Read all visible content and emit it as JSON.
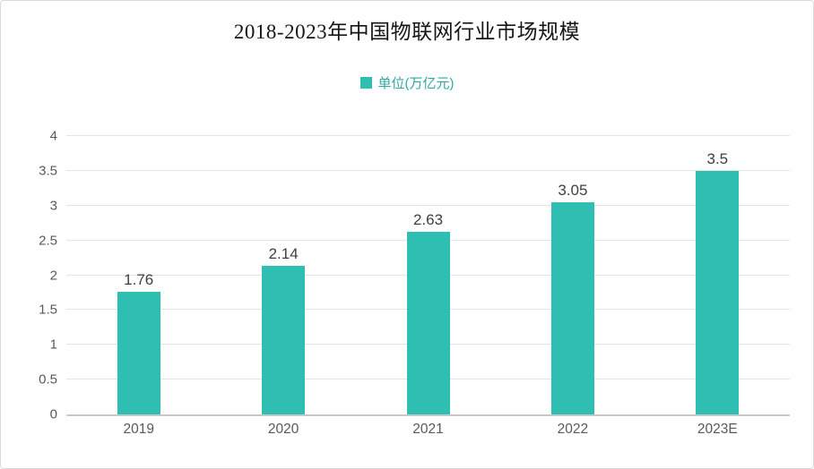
{
  "chart": {
    "title": "2018-2023年中国物联网行业市场规模",
    "legend_label": "单位(万亿元)"
  },
  "chart_data": {
    "type": "bar",
    "title": "2018-2023年中国物联网行业市场规模",
    "legend": [
      "单位(万亿元)"
    ],
    "legend_position": "top",
    "categories": [
      "2019",
      "2020",
      "2021",
      "2022",
      "2023E"
    ],
    "values": [
      1.76,
      2.14,
      2.63,
      3.05,
      3.5
    ],
    "value_labels": [
      "1.76",
      "2.14",
      "2.63",
      "3.05",
      "3.5"
    ],
    "xlabel": "",
    "ylabel": "",
    "ylim": [
      0,
      4
    ],
    "yticks": [
      0,
      0.5,
      1,
      1.5,
      2,
      2.5,
      3,
      3.5,
      4
    ],
    "ytick_labels": [
      "0",
      "0.5",
      "1",
      "1.5",
      "2",
      "2.5",
      "3",
      "3.5",
      "4"
    ],
    "grid": true
  },
  "colors": {
    "bar": "#2FBFB2",
    "legend_text": "#2FA99F",
    "grid_line": "#E4E4E4",
    "axis_line": "#C8C8C8",
    "tick_text": "#595959",
    "value_label_text": "#3F3F3F",
    "title_text": "#161616",
    "background": "#FFFFFF"
  }
}
